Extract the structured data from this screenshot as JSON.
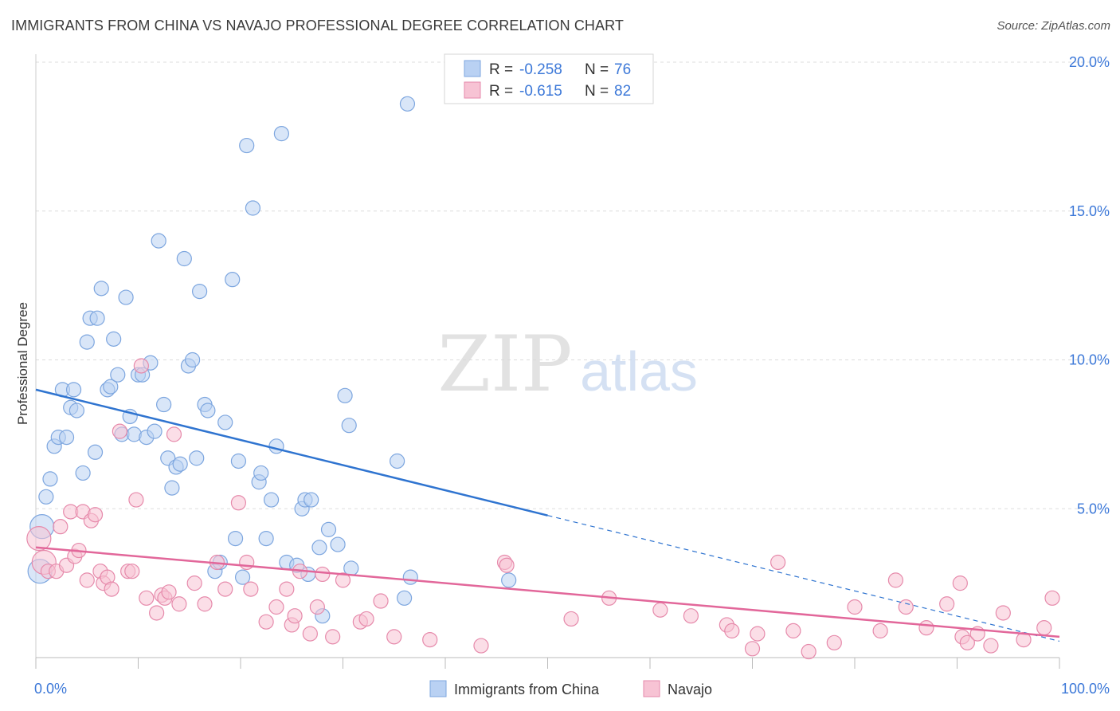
{
  "title": "IMMIGRANTS FROM CHINA VS NAVAJO PROFESSIONAL DEGREE CORRELATION CHART",
  "source": "Source: ZipAtlas.com",
  "watermark": {
    "zip": "ZIP",
    "atlas": "atlas"
  },
  "legend_stats": [
    {
      "r_label": "R =",
      "r_value": "-0.258",
      "n_label": "N =",
      "n_value": "76"
    },
    {
      "r_label": "R =",
      "r_value": "-0.615",
      "n_label": "N =",
      "n_value": "82"
    }
  ],
  "colors": {
    "china_fill": "#b9d1f3",
    "china_stroke": "#7da6df",
    "china_line": "#2f74d0",
    "navajo_fill": "#f7c3d4",
    "navajo_stroke": "#e68aab",
    "navajo_line": "#e2679a",
    "accent_text": "#3c78d8",
    "grid": "#dddddd"
  },
  "chart_data": {
    "type": "scatter",
    "title": "IMMIGRANTS FROM CHINA VS NAVAJO PROFESSIONAL DEGREE CORRELATION CHART",
    "xlabel": "",
    "ylabel": "Professional Degree",
    "xlim": [
      0,
      100
    ],
    "ylim": [
      0,
      20
    ],
    "x_tick_labels": [
      "0.0%",
      "100.0%"
    ],
    "y_ticks": [
      5,
      10,
      15,
      20
    ],
    "y_tick_labels": [
      "5.0%",
      "10.0%",
      "15.0%",
      "20.0%"
    ],
    "grid": true,
    "legend_position": "bottom-center",
    "series": [
      {
        "name": "Immigrants from China",
        "r": -0.258,
        "n": 76,
        "trend": {
          "x0": 0,
          "y0": 9.0,
          "x1": 100,
          "y1": 0.55,
          "solid_until": 50
        },
        "points": [
          [
            0.4,
            2.9
          ],
          [
            0.6,
            4.4
          ],
          [
            1.0,
            5.4
          ],
          [
            1.4,
            6.0
          ],
          [
            1.8,
            7.1
          ],
          [
            2.2,
            7.4
          ],
          [
            2.6,
            9.0
          ],
          [
            3.0,
            7.4
          ],
          [
            3.4,
            8.4
          ],
          [
            3.7,
            9.0
          ],
          [
            4.0,
            8.3
          ],
          [
            4.6,
            6.2
          ],
          [
            5.0,
            10.6
          ],
          [
            5.3,
            11.4
          ],
          [
            5.8,
            6.9
          ],
          [
            6.0,
            11.4
          ],
          [
            6.4,
            12.4
          ],
          [
            7.0,
            9.0
          ],
          [
            7.3,
            9.1
          ],
          [
            7.6,
            10.7
          ],
          [
            8.0,
            9.5
          ],
          [
            8.4,
            7.5
          ],
          [
            8.8,
            12.1
          ],
          [
            9.2,
            8.1
          ],
          [
            9.6,
            7.5
          ],
          [
            10.0,
            9.5
          ],
          [
            10.4,
            9.5
          ],
          [
            10.8,
            7.4
          ],
          [
            11.2,
            9.9
          ],
          [
            11.6,
            7.6
          ],
          [
            12.0,
            14.0
          ],
          [
            12.5,
            8.5
          ],
          [
            12.9,
            6.7
          ],
          [
            13.3,
            5.7
          ],
          [
            13.7,
            6.4
          ],
          [
            14.1,
            6.5
          ],
          [
            14.5,
            13.4
          ],
          [
            14.9,
            9.8
          ],
          [
            15.3,
            10.0
          ],
          [
            15.7,
            6.7
          ],
          [
            16.0,
            12.3
          ],
          [
            16.5,
            8.5
          ],
          [
            16.8,
            8.3
          ],
          [
            17.5,
            2.9
          ],
          [
            18.0,
            3.2
          ],
          [
            18.5,
            7.9
          ],
          [
            19.2,
            12.7
          ],
          [
            19.5,
            4.0
          ],
          [
            19.8,
            6.6
          ],
          [
            20.2,
            2.7
          ],
          [
            20.6,
            17.2
          ],
          [
            21.2,
            15.1
          ],
          [
            21.8,
            5.9
          ],
          [
            22.0,
            6.2
          ],
          [
            22.5,
            4.0
          ],
          [
            23.0,
            5.3
          ],
          [
            23.5,
            7.1
          ],
          [
            24.0,
            17.6
          ],
          [
            24.5,
            3.2
          ],
          [
            25.5,
            3.1
          ],
          [
            26.0,
            5.0
          ],
          [
            26.3,
            5.3
          ],
          [
            26.6,
            2.8
          ],
          [
            26.9,
            5.3
          ],
          [
            27.7,
            3.7
          ],
          [
            28.0,
            1.4
          ],
          [
            28.6,
            4.3
          ],
          [
            29.5,
            3.8
          ],
          [
            30.2,
            8.8
          ],
          [
            30.6,
            7.8
          ],
          [
            30.8,
            3.0
          ],
          [
            35.3,
            6.6
          ],
          [
            36.0,
            2.0
          ],
          [
            36.6,
            2.7
          ],
          [
            36.3,
            18.6
          ],
          [
            46.2,
            2.6
          ]
        ]
      },
      {
        "name": "Navajo",
        "r": -0.615,
        "n": 82,
        "trend": {
          "x0": 0,
          "y0": 3.7,
          "x1": 100,
          "y1": 0.7
        },
        "points": [
          [
            0.3,
            4.0
          ],
          [
            0.8,
            3.2
          ],
          [
            1.2,
            2.9
          ],
          [
            2.0,
            2.9
          ],
          [
            2.4,
            4.4
          ],
          [
            3.0,
            3.1
          ],
          [
            3.4,
            4.9
          ],
          [
            3.8,
            3.4
          ],
          [
            4.2,
            3.6
          ],
          [
            4.6,
            4.9
          ],
          [
            5.0,
            2.6
          ],
          [
            5.4,
            4.6
          ],
          [
            5.8,
            4.8
          ],
          [
            6.3,
            2.9
          ],
          [
            6.6,
            2.5
          ],
          [
            7.0,
            2.7
          ],
          [
            7.4,
            2.3
          ],
          [
            8.2,
            7.6
          ],
          [
            9.0,
            2.9
          ],
          [
            9.4,
            2.9
          ],
          [
            9.8,
            5.3
          ],
          [
            10.3,
            9.8
          ],
          [
            10.8,
            2.0
          ],
          [
            11.8,
            1.5
          ],
          [
            12.3,
            2.1
          ],
          [
            12.6,
            2.0
          ],
          [
            13.0,
            2.2
          ],
          [
            13.5,
            7.5
          ],
          [
            14.0,
            1.8
          ],
          [
            15.5,
            2.5
          ],
          [
            16.5,
            1.8
          ],
          [
            17.7,
            3.2
          ],
          [
            18.5,
            2.3
          ],
          [
            19.8,
            5.2
          ],
          [
            20.6,
            3.2
          ],
          [
            21.0,
            2.3
          ],
          [
            22.5,
            1.2
          ],
          [
            23.5,
            1.7
          ],
          [
            24.5,
            2.3
          ],
          [
            25.0,
            1.1
          ],
          [
            25.3,
            1.4
          ],
          [
            25.8,
            2.9
          ],
          [
            26.8,
            0.8
          ],
          [
            27.5,
            1.7
          ],
          [
            28.0,
            2.8
          ],
          [
            29.0,
            0.7
          ],
          [
            30.0,
            2.6
          ],
          [
            31.7,
            1.2
          ],
          [
            32.3,
            1.3
          ],
          [
            33.7,
            1.9
          ],
          [
            35.0,
            0.7
          ],
          [
            38.5,
            0.6
          ],
          [
            43.5,
            0.4
          ],
          [
            45.8,
            3.2
          ],
          [
            46.0,
            3.1
          ],
          [
            52.3,
            1.3
          ],
          [
            56.0,
            2.0
          ],
          [
            61.0,
            1.6
          ],
          [
            64.0,
            1.4
          ],
          [
            67.5,
            1.1
          ],
          [
            68.0,
            0.9
          ],
          [
            70.0,
            0.3
          ],
          [
            70.5,
            0.8
          ],
          [
            72.5,
            3.2
          ],
          [
            74.0,
            0.9
          ],
          [
            75.5,
            0.2
          ],
          [
            78.0,
            0.5
          ],
          [
            80.0,
            1.7
          ],
          [
            82.5,
            0.9
          ],
          [
            84.0,
            2.6
          ],
          [
            85.0,
            1.7
          ],
          [
            87.0,
            1.0
          ],
          [
            89.0,
            1.8
          ],
          [
            90.3,
            2.5
          ],
          [
            90.5,
            0.7
          ],
          [
            91.0,
            0.5
          ],
          [
            92.0,
            0.8
          ],
          [
            93.3,
            0.4
          ],
          [
            94.5,
            1.5
          ],
          [
            96.5,
            0.6
          ],
          [
            98.5,
            1.0
          ],
          [
            99.3,
            2.0
          ]
        ]
      }
    ]
  }
}
